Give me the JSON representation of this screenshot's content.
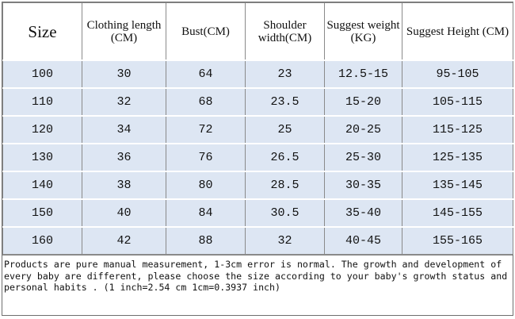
{
  "table": {
    "headers": [
      "Size",
      "Clothing length (CM)",
      "Bust(CM)",
      "Shoulder width(CM)",
      "Suggest weight (KG)",
      "Suggest Height (CM)"
    ],
    "rows": [
      [
        "100",
        "30",
        "64",
        "23",
        "12.5-15",
        "95-105"
      ],
      [
        "110",
        "32",
        "68",
        "23.5",
        "15-20",
        "105-115"
      ],
      [
        "120",
        "34",
        "72",
        "25",
        "20-25",
        "115-125"
      ],
      [
        "130",
        "36",
        "76",
        "26.5",
        "25-30",
        "125-135"
      ],
      [
        "140",
        "38",
        "80",
        "28.5",
        "30-35",
        "135-145"
      ],
      [
        "150",
        "40",
        "84",
        "30.5",
        "35-40",
        "145-155"
      ],
      [
        "160",
        "42",
        "88",
        "32",
        "40-45",
        "155-165"
      ]
    ]
  },
  "note": "Products are pure manual measurement,  1-3cm error is normal.   The growth and development of every baby are different, please choose the size according to your baby's growth status and personal habits .   (1 inch=2.54 cm    1cm=0.3937 inch)"
}
